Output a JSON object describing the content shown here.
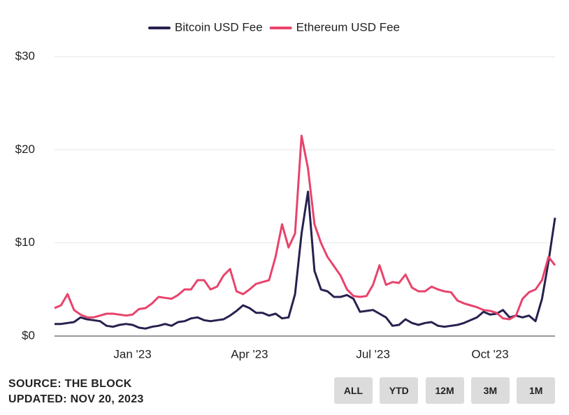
{
  "chart_data": {
    "type": "line",
    "categories": [
      null,
      null,
      null,
      null,
      null,
      null,
      null,
      null,
      null,
      null,
      null,
      null,
      "Jan '23",
      null,
      null,
      null,
      null,
      null,
      null,
      null,
      null,
      null,
      null,
      null,
      null,
      null,
      null,
      null,
      null,
      null,
      "Apr '23",
      null,
      null,
      null,
      null,
      null,
      null,
      null,
      null,
      null,
      null,
      null,
      null,
      null,
      null,
      null,
      null,
      null,
      null,
      "Jul '23",
      null,
      null,
      null,
      null,
      null,
      null,
      null,
      null,
      null,
      null,
      null,
      null,
      null,
      null,
      null,
      null,
      null,
      "Oct '23",
      null,
      null,
      null,
      null,
      null,
      null,
      null,
      null,
      null,
      null
    ],
    "series": [
      {
        "name": "Bitcoin USD Fee",
        "color": "#27214f",
        "values": [
          1.3,
          1.3,
          1.4,
          1.5,
          2.0,
          1.8,
          1.7,
          1.6,
          1.1,
          1.0,
          1.2,
          1.3,
          1.2,
          0.9,
          0.8,
          1.0,
          1.1,
          1.3,
          1.1,
          1.5,
          1.6,
          1.9,
          2.0,
          1.7,
          1.6,
          1.7,
          1.8,
          2.2,
          2.7,
          3.3,
          3.0,
          2.5,
          2.5,
          2.2,
          2.4,
          1.9,
          2.0,
          4.5,
          11.0,
          15.5,
          7.0,
          5.0,
          4.8,
          4.2,
          4.2,
          4.4,
          4.0,
          2.6,
          2.7,
          2.8,
          2.4,
          2.0,
          1.1,
          1.2,
          1.8,
          1.4,
          1.2,
          1.4,
          1.5,
          1.1,
          1.0,
          1.1,
          1.2,
          1.4,
          1.7,
          2.0,
          2.6,
          2.3,
          2.4,
          2.8,
          2.0,
          2.2,
          2.0,
          2.2,
          1.6,
          4.0,
          8.0,
          12.7
        ]
      },
      {
        "name": "Ethereum USD Fee",
        "color": "#e8436b",
        "values": [
          3.0,
          3.3,
          4.5,
          2.8,
          2.3,
          2.0,
          2.0,
          2.2,
          2.4,
          2.4,
          2.3,
          2.2,
          2.3,
          2.9,
          3.0,
          3.5,
          4.2,
          4.1,
          4.0,
          4.4,
          5.0,
          5.0,
          6.0,
          6.0,
          5.0,
          5.3,
          6.5,
          7.2,
          4.8,
          4.5,
          5.0,
          5.6,
          5.8,
          6.0,
          8.5,
          12.0,
          9.5,
          11.0,
          21.5,
          18.0,
          12.0,
          10.0,
          8.5,
          7.5,
          6.5,
          5.0,
          4.3,
          4.2,
          4.3,
          5.5,
          7.6,
          5.5,
          5.8,
          5.7,
          6.6,
          5.2,
          4.8,
          4.8,
          5.3,
          5.0,
          4.8,
          4.7,
          3.8,
          3.5,
          3.3,
          3.1,
          2.8,
          2.7,
          2.5,
          1.9,
          1.8,
          2.2,
          4.0,
          4.7,
          5.0,
          6.0,
          8.5,
          7.6
        ]
      }
    ],
    "ylim": [
      0,
      30
    ],
    "yticks": [
      {
        "value": 0,
        "label": "$0"
      },
      {
        "value": 10,
        "label": "$10"
      },
      {
        "value": 20,
        "label": "$20"
      },
      {
        "value": 30,
        "label": "$30"
      }
    ],
    "grid": true,
    "legend": "top"
  },
  "footer": {
    "source": "SOURCE: THE BLOCK",
    "updated": "UPDATED: NOV 20, 2023"
  },
  "range_buttons": [
    "ALL",
    "YTD",
    "12M",
    "3M",
    "1M"
  ]
}
